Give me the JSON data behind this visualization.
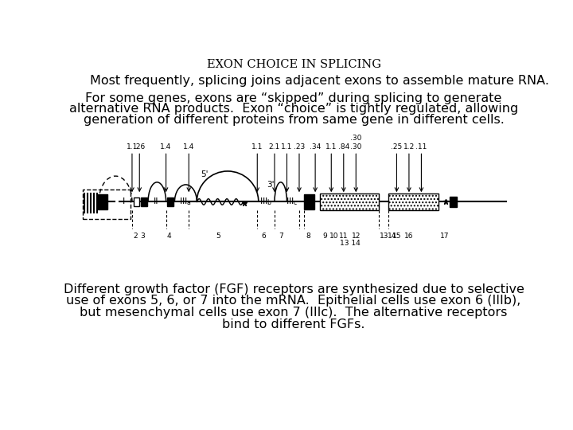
{
  "title": "EXON CHOICE IN SPLICING",
  "line1": "Most frequently, splicing joins adjacent exons to assemble mature RNA.",
  "para1_line1": "For some genes, exons are “skipped” during splicing to generate",
  "para1_line2": "alternative RNA products.  Exon “choice” is tightly regulated, allowing",
  "para1_line3": "generation of different proteins from same gene in different cells.",
  "para2_line1": "Different growth factor (FGF) receptors are synthesized due to selective",
  "para2_line2": "use of exons 5, 6, or 7 into the mRNA.  Epithelial cells use exon 6 (IIIb),",
  "para2_line3": "but mesenchymal cells use exon 7 (IIIc).  The alternative receptors",
  "para2_line4": "bind to different FGFs.",
  "bg_color": "#ffffff",
  "text_color": "#000000",
  "title_fontsize": 10.5,
  "body_fontsize": 11.5
}
